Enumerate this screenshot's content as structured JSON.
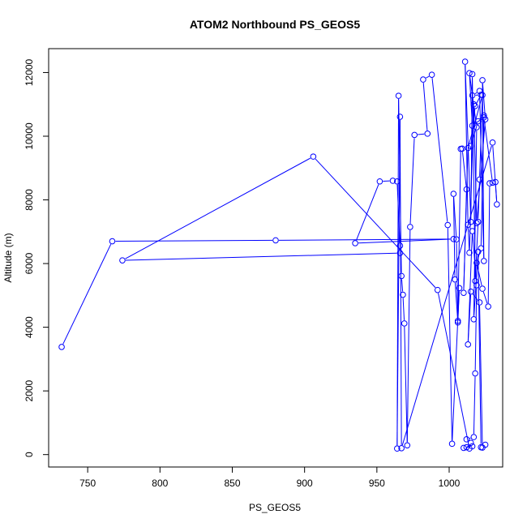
{
  "chart_data": {
    "type": "line",
    "title": "ATOM2 Northbound PS_GEOS5",
    "xlabel": "PS_GEOS5",
    "ylabel": "Altitude (m)",
    "xlim": [
      723,
      1037
    ],
    "ylim": [
      -390,
      12750
    ],
    "xticks": [
      750,
      800,
      850,
      900,
      950,
      1000
    ],
    "yticks": [
      0,
      2000,
      4000,
      6000,
      8000,
      10000,
      12000
    ],
    "grid": false,
    "legend": "none",
    "line_color": "#0000ff",
    "marker": "open-circle",
    "series": [
      {
        "x": [
          732,
          767,
          880,
          1003,
          935,
          952,
          961,
          964,
          966,
          966,
          774,
          906,
          992,
          1014,
          1012,
          1010,
          1016,
          1015,
          1012,
          1017,
          1018,
          1019,
          1016,
          1013,
          1015,
          1021,
          1023,
          1025,
          1022,
          1020,
          1017,
          1019,
          1014,
          1016,
          1024,
          1030,
          1028,
          1027,
          1023,
          1019,
          1022,
          1024,
          1020,
          1015,
          1018,
          1022,
          1016,
          1021,
          1024,
          1023,
          1025,
          1019,
          1017,
          1014,
          1013,
          1011,
          1015,
          1016,
          1018,
          1020,
          1021,
          1023,
          1013,
          1010,
          1012,
          1009,
          1008,
          1006,
          1005,
          1003,
          1004,
          1006,
          1007,
          1002,
          999,
          988,
          982,
          985,
          976,
          973,
          971,
          969,
          968,
          967,
          965,
          964,
          966,
          967,
          1030,
          1033,
          1032
        ],
        "y": [
          3380,
          6700,
          6730,
          6770,
          6640,
          8580,
          8600,
          8580,
          6560,
          6330,
          6100,
          9360,
          5170,
          190,
          230,
          210,
          260,
          370,
          480,
          550,
          2550,
          5320,
          7020,
          3460,
          5120,
          4780,
          220,
          310,
          230,
          6370,
          4250,
          10280,
          11980,
          10330,
          10590,
          8540,
          8520,
          4650,
          5210,
          6020,
          6480,
          10650,
          10470,
          9690,
          10950,
          11300,
          11280,
          11420,
          6080,
          11760,
          10530,
          7270,
          11000,
          6340,
          7220,
          12340,
          7310,
          11950,
          5450,
          7310,
          8640,
          11290,
          9630,
          5080,
          8330,
          9610,
          9600,
          4200,
          6760,
          8190,
          5500,
          4150,
          5230,
          340,
          7210,
          11930,
          11780,
          10080,
          10040,
          7150,
          290,
          4120,
          5020,
          5610,
          11270,
          190,
          10610,
          200,
          9800,
          7860,
          8560
        ]
      }
    ]
  }
}
